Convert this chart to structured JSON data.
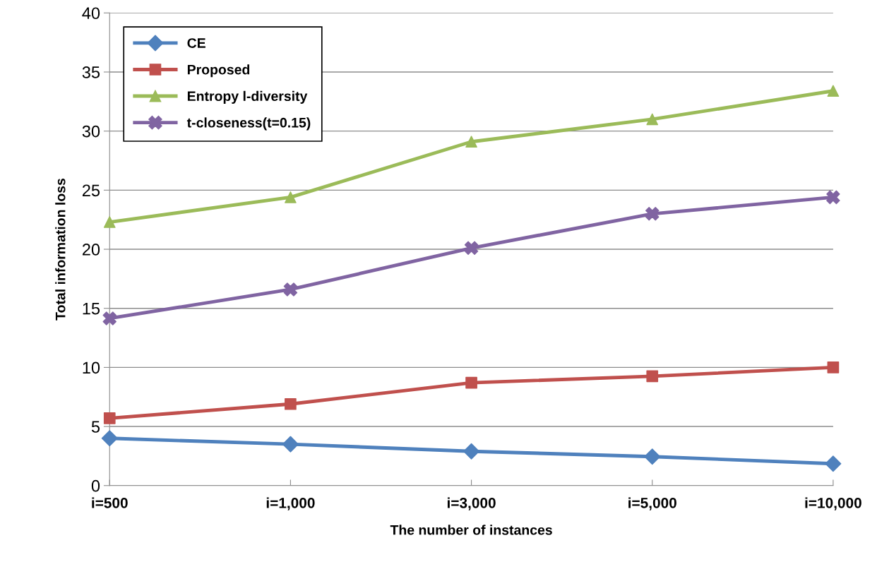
{
  "chart_data": {
    "type": "line",
    "xlabel": "The number of instances",
    "ylabel": "Total information loss",
    "categories": [
      "i=500",
      "i=1,000",
      "i=3,000",
      "i=5,000",
      "i=10,000"
    ],
    "series": [
      {
        "name": "CE",
        "color": "#4f81bd",
        "marker": "diamond",
        "values": [
          4.0,
          3.5,
          2.9,
          2.45,
          1.85
        ]
      },
      {
        "name": "Proposed",
        "color": "#c0504d",
        "marker": "square",
        "values": [
          5.7,
          6.9,
          8.7,
          9.25,
          10.0
        ]
      },
      {
        "name": "Entropy l-diversity",
        "color": "#9bbb59",
        "marker": "triangle",
        "values": [
          22.3,
          24.4,
          29.1,
          31.0,
          33.4
        ]
      },
      {
        "name": "t-closeness(t=0.15)",
        "color": "#8064a2",
        "marker": "cross",
        "values": [
          14.15,
          16.6,
          20.1,
          23.0,
          24.4
        ]
      }
    ],
    "ylim": [
      0,
      40
    ],
    "yticks": [
      0,
      5,
      10,
      15,
      20,
      25,
      30,
      35,
      40
    ],
    "grid": "y",
    "legend": "top left",
    "line_style": "solid"
  }
}
